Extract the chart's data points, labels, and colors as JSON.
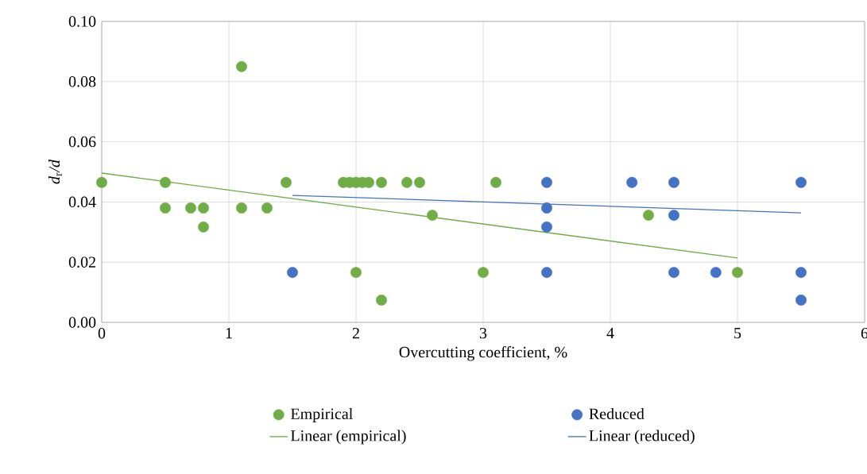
{
  "chart_data": {
    "type": "scatter",
    "xlabel": "Overcutting coefficient, %",
    "ylabel": "*d*$_{r}$*/d*",
    "xlim": [
      0,
      6
    ],
    "xticks": [
      0,
      1,
      2,
      3,
      4,
      5,
      6
    ],
    "ylim": [
      0,
      0.1
    ],
    "yticks": [
      {
        "value": 0,
        "label": "0.00"
      },
      {
        "value": 0.02,
        "label": "0.02"
      },
      {
        "value": 0.04,
        "label": "0.04"
      },
      {
        "value": 0.06,
        "label": "0.06"
      },
      {
        "value": 0.08,
        "label": "0.08"
      },
      {
        "value": 0.1,
        "label": "0.10"
      }
    ],
    "grid": true,
    "legend": "bottom",
    "marker": "circle",
    "series": [
      {
        "name": "Empirical",
        "color": "#70ad47",
        "x": [
          0,
          0.5,
          0.5,
          0.7,
          0.8,
          0.8,
          1.1,
          1.1,
          1.3,
          1.45,
          1.9,
          1.95,
          2.0,
          2.05,
          2.1,
          2.0,
          2.2,
          2.2,
          2.4,
          2.5,
          2.6,
          3.0,
          3.1,
          4.3,
          5.0
        ],
        "values": [
          0.0465,
          0.0465,
          0.038,
          0.038,
          0.038,
          0.0317,
          0.085,
          0.038,
          0.038,
          0.0465,
          0.0465,
          0.0465,
          0.0465,
          0.0465,
          0.0465,
          0.0166,
          0.0465,
          0.0074,
          0.0465,
          0.0465,
          0.0356,
          0.0166,
          0.0465,
          0.0356,
          0.0166
        ]
      },
      {
        "name": "Reduced",
        "color": "#4472c4",
        "x": [
          1.5,
          3.5,
          3.5,
          3.5,
          3.5,
          4.17,
          4.5,
          4.5,
          4.5,
          4.83,
          5.5,
          5.5,
          5.5
        ],
        "values": [
          0.0166,
          0.0465,
          0.038,
          0.0317,
          0.0166,
          0.0465,
          0.0465,
          0.0356,
          0.0166,
          0.0166,
          0.0465,
          0.0166,
          0.0074
        ]
      },
      {
        "name": "Linear (empirical)",
        "color": "#70ad47",
        "type": "line",
        "marker": "none",
        "x": [
          0,
          5
        ],
        "values": [
          0.0496,
          0.0214
        ]
      },
      {
        "name": "Linear (reduced)",
        "color": "#4472c4",
        "type": "line",
        "marker": "none",
        "x": [
          1.5,
          5.5
        ],
        "values": [
          0.0422,
          0.0364
        ]
      }
    ]
  }
}
